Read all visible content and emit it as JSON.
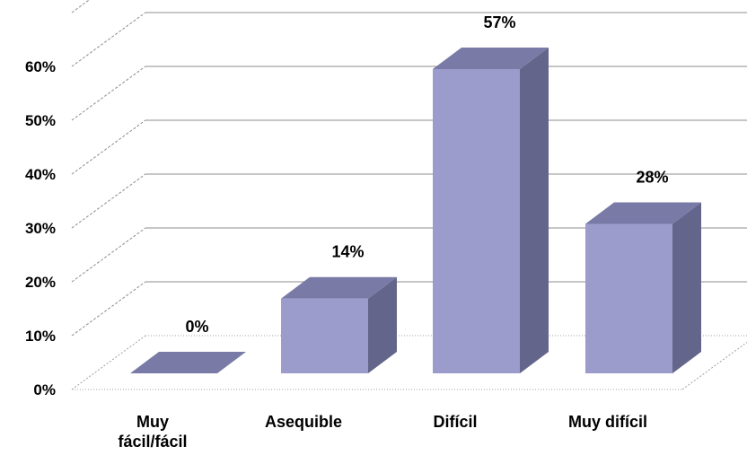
{
  "colors": {
    "bar_front": "#9b9ccc",
    "bar_side": "#63658a",
    "bar_top": "#797aa6",
    "gridline": "#8c8c8c",
    "floor": "#a0a0a0"
  },
  "chart_data": {
    "type": "bar",
    "title": "",
    "xlabel": "",
    "ylabel": "",
    "ylim": [
      0,
      60
    ],
    "y_ticks": [
      {
        "value": 0,
        "label": "0%"
      },
      {
        "value": 10,
        "label": "10%"
      },
      {
        "value": 20,
        "label": "20%"
      },
      {
        "value": 30,
        "label": "30%"
      },
      {
        "value": 40,
        "label": "40%"
      },
      {
        "value": 50,
        "label": "50%"
      },
      {
        "value": 60,
        "label": "60%"
      }
    ],
    "categories": [
      "Muy fácil/fácil",
      "Asequible",
      "Difícil",
      "Muy difícil"
    ],
    "category_lines": [
      [
        "Muy",
        "fácil/fácil"
      ],
      [
        "Asequible"
      ],
      [
        "Difícil"
      ],
      [
        "Muy difícil"
      ]
    ],
    "values": [
      0,
      14,
      57,
      28
    ],
    "data_labels": [
      "0%",
      "14%",
      "57%",
      "28%"
    ],
    "grid": true,
    "legend": "none",
    "style": "3d"
  }
}
